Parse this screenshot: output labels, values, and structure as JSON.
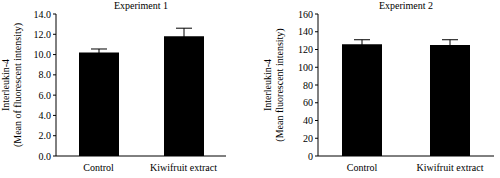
{
  "chart_data": [
    {
      "type": "bar",
      "title": "Experiment 1",
      "ylabel": "Interleukin-4\n(Mean of fluorescent intensity)",
      "categories": [
        "Control",
        "Kiwifruit extract"
      ],
      "values": [
        10.2,
        11.8
      ],
      "errors": [
        0.35,
        0.8
      ],
      "color": "#000000",
      "ylim": [
        0,
        14
      ],
      "yticks": [
        {
          "value": 0,
          "label": "0.0"
        },
        {
          "value": 2,
          "label": "2.0"
        },
        {
          "value": 4,
          "label": "4.0"
        },
        {
          "value": 6,
          "label": "6.0"
        },
        {
          "value": 8,
          "label": "8.0"
        },
        {
          "value": 10,
          "label": "10.0"
        },
        {
          "value": 12,
          "label": "12.0"
        },
        {
          "value": 14,
          "label": "14.0"
        }
      ],
      "grid": false
    },
    {
      "type": "bar",
      "title": "Experiment 2",
      "ylabel": "Interleukin-4\n(Mean fluorescent intensity)",
      "categories": [
        "Control",
        "Kiwifruit extract"
      ],
      "values": [
        126,
        125
      ],
      "errors": [
        5,
        6
      ],
      "color": "#000000",
      "ylim": [
        0,
        160
      ],
      "yticks": [
        0,
        20,
        40,
        60,
        80,
        100,
        120,
        140,
        160
      ],
      "grid": false
    }
  ]
}
